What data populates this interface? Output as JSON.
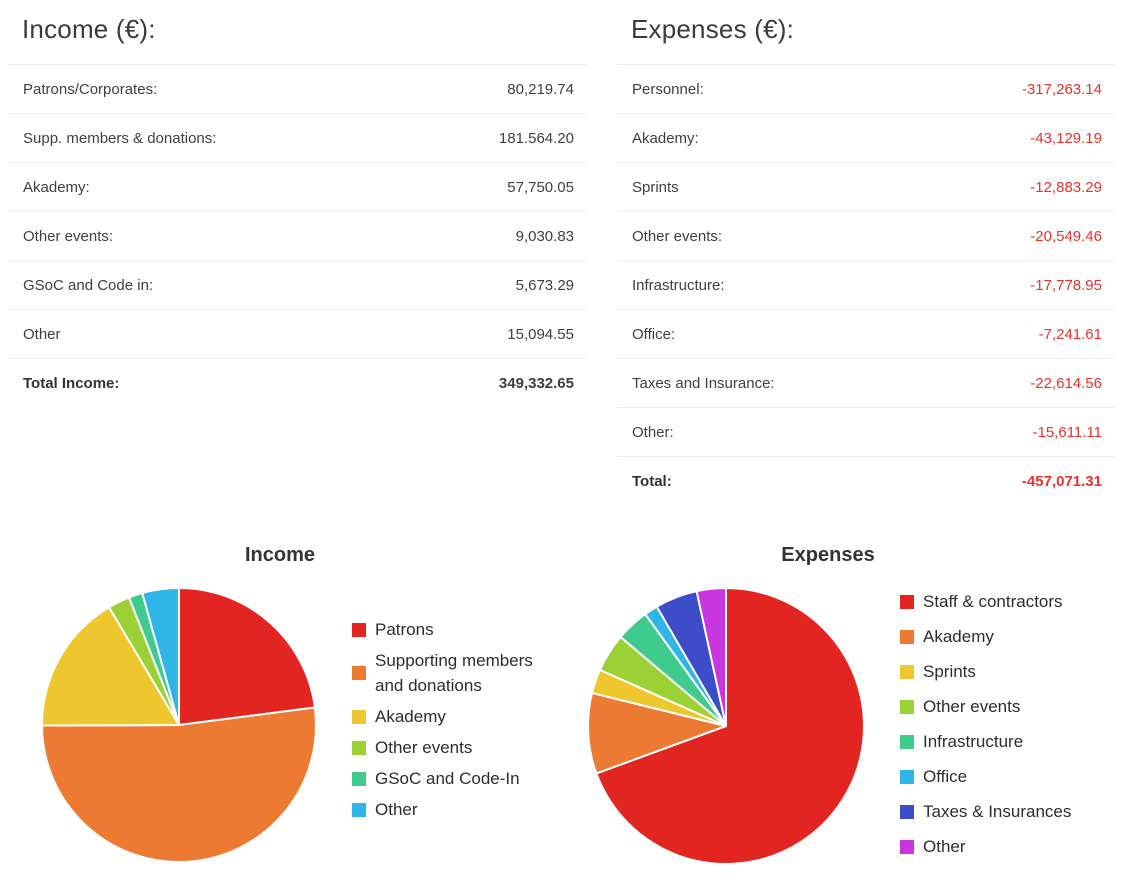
{
  "income_table": {
    "title": "Income (€):",
    "rows": [
      {
        "label": "Patrons/Corporates:",
        "value": "80,219.74"
      },
      {
        "label": "Supp. members & donations:",
        "value": "181.564.20"
      },
      {
        "label": "Akademy:",
        "value": "57,750.05"
      },
      {
        "label": "Other events:",
        "value": "9,030.83"
      },
      {
        "label": "GSoC and Code in:",
        "value": "5,673.29"
      },
      {
        "label": "Other",
        "value": "15,094.55"
      }
    ],
    "total": {
      "label": "Total Income:",
      "value": "349,332.65"
    }
  },
  "expenses_table": {
    "title": "Expenses (€):",
    "rows": [
      {
        "label": "Personnel:",
        "value": "-317,263.14"
      },
      {
        "label": "Akademy:",
        "value": "-43,129.19"
      },
      {
        "label": "Sprints",
        "value": "-12,883.29"
      },
      {
        "label": "Other events:",
        "value": "-20,549.46"
      },
      {
        "label": "Infrastructure:",
        "value": "-17,778.95"
      },
      {
        "label": "Office:",
        "value": "-7,241.61"
      },
      {
        "label": "Taxes and Insurance:",
        "value": "-22,614.56"
      },
      {
        "label": "Other:",
        "value": "-15,611.11"
      }
    ],
    "total": {
      "label": "Total:",
      "value": "-457,071.31"
    }
  },
  "colors": {
    "negative_text": "#e8322d",
    "divider": "#ececec",
    "body_text": "#3f3f3f"
  },
  "chart_data": [
    {
      "type": "pie",
      "title": "Income",
      "labels": [
        "Patrons",
        "Supporting members and donations",
        "Akademy",
        "Other events",
        "GSoC and Code-In",
        "Other"
      ],
      "values": [
        80219.74,
        181564.2,
        57750.05,
        9030.83,
        5673.29,
        15094.55
      ],
      "percents": [
        22.96,
        51.97,
        16.53,
        2.59,
        1.62,
        4.32
      ],
      "colors": [
        "#e32522",
        "#ec7a33",
        "#eec72f",
        "#9bd135",
        "#3fcb8e",
        "#2fb5e8"
      ],
      "start_angle": "top",
      "direction": "clockwise",
      "legend_position": "right"
    },
    {
      "type": "pie",
      "title": "Expenses",
      "labels": [
        "Staff & contractors",
        "Akademy",
        "Sprints",
        "Other events",
        "Infrastructure",
        "Office",
        "Taxes & Insurances",
        "Other"
      ],
      "values": [
        317263.14,
        43129.19,
        12883.29,
        20549.46,
        17778.95,
        7241.61,
        22614.56,
        15611.11
      ],
      "percents": [
        69.41,
        9.44,
        2.82,
        4.5,
        3.89,
        1.58,
        4.95,
        3.42
      ],
      "colors": [
        "#e32522",
        "#ec7a33",
        "#eec72f",
        "#9bd135",
        "#3fcb8e",
        "#2fb5e8",
        "#3d4cc8",
        "#c936dd"
      ],
      "start_angle": "top",
      "direction": "clockwise",
      "legend_position": "right"
    }
  ]
}
